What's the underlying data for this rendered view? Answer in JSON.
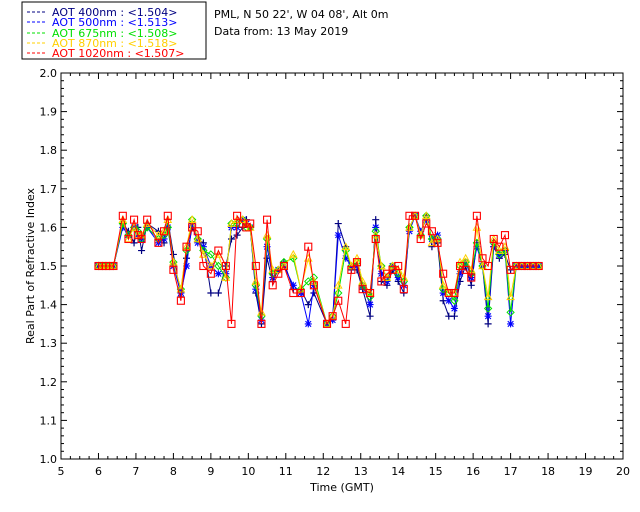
{
  "header": {
    "site": "PML, N 50 22', W 04 08', Alt 0m",
    "date": "Data from: 13 May 2019"
  },
  "legend": [
    {
      "label": "AOT  400nm : <1.504>",
      "color": "#000080"
    },
    {
      "label": "AOT  500nm : <1.513>",
      "color": "#0000ff"
    },
    {
      "label": "AOT  675nm : <1.508>",
      "color": "#00e000"
    },
    {
      "label": "AOT  870nm : <1.518>",
      "color": "#ffd000"
    },
    {
      "label": "AOT 1020nm : <1.507>",
      "color": "#ff0000"
    }
  ],
  "chart_data": {
    "type": "line",
    "xlabel": "Time (GMT)",
    "ylabel": "Real Part of Refractive Index",
    "xlim": [
      5,
      20
    ],
    "ylim": [
      1.0,
      2.0
    ],
    "xticks": [
      5,
      6,
      7,
      8,
      9,
      10,
      11,
      12,
      13,
      14,
      15,
      16,
      17,
      18,
      19,
      20
    ],
    "yticks": [
      1.0,
      1.1,
      1.2,
      1.3,
      1.4,
      1.5,
      1.6,
      1.7,
      1.8,
      1.9,
      2.0
    ],
    "x": [
      6.0,
      6.1,
      6.2,
      6.3,
      6.4,
      6.65,
      6.8,
      6.95,
      7.05,
      7.15,
      7.3,
      7.6,
      7.75,
      7.85,
      8.0,
      8.2,
      8.35,
      8.5,
      8.65,
      8.8,
      9.0,
      9.2,
      9.4,
      9.55,
      9.7,
      9.85,
      9.95,
      10.05,
      10.2,
      10.35,
      10.5,
      10.65,
      10.8,
      10.95,
      11.2,
      11.4,
      11.6,
      11.75,
      12.1,
      12.25,
      12.4,
      12.6,
      12.75,
      12.9,
      13.05,
      13.25,
      13.4,
      13.55,
      13.7,
      13.85,
      14.0,
      14.15,
      14.3,
      14.45,
      14.6,
      14.75,
      14.9,
      15.05,
      15.2,
      15.35,
      15.5,
      15.65,
      15.8,
      15.95,
      16.1,
      16.25,
      16.4,
      16.55,
      16.7,
      16.85,
      17.0,
      17.15,
      17.3,
      17.45,
      17.6,
      17.75
    ],
    "series": [
      {
        "name": "AOT 400nm",
        "color": "#000080",
        "marker": "plus",
        "values": [
          1.5,
          1.5,
          1.5,
          1.5,
          1.5,
          1.61,
          1.59,
          1.56,
          1.6,
          1.54,
          1.61,
          1.59,
          1.56,
          1.62,
          1.53,
          1.42,
          1.52,
          1.6,
          1.57,
          1.56,
          1.43,
          1.43,
          1.5,
          1.57,
          1.58,
          1.6,
          1.62,
          1.6,
          1.43,
          1.35,
          1.52,
          1.46,
          1.49,
          1.51,
          1.44,
          1.44,
          1.4,
          1.43,
          1.35,
          1.36,
          1.61,
          1.55,
          1.49,
          1.49,
          1.44,
          1.37,
          1.62,
          1.46,
          1.45,
          1.49,
          1.46,
          1.43,
          1.6,
          1.63,
          1.58,
          1.63,
          1.55,
          1.56,
          1.41,
          1.37,
          1.37,
          1.46,
          1.5,
          1.45,
          1.56,
          1.5,
          1.35,
          1.55,
          1.52,
          1.53,
          1.49,
          1.5,
          1.5,
          1.5,
          1.5,
          1.5
        ]
      },
      {
        "name": "AOT 500nm",
        "color": "#0000ff",
        "marker": "star",
        "values": [
          1.5,
          1.5,
          1.5,
          1.5,
          1.5,
          1.6,
          1.58,
          1.6,
          1.58,
          1.57,
          1.6,
          1.56,
          1.57,
          1.6,
          1.5,
          1.43,
          1.5,
          1.61,
          1.56,
          1.55,
          1.5,
          1.48,
          1.48,
          1.6,
          1.6,
          1.62,
          1.61,
          1.6,
          1.44,
          1.36,
          1.55,
          1.47,
          1.49,
          1.5,
          1.45,
          1.43,
          1.35,
          1.45,
          1.35,
          1.36,
          1.58,
          1.52,
          1.5,
          1.5,
          1.45,
          1.4,
          1.6,
          1.48,
          1.46,
          1.5,
          1.47,
          1.45,
          1.59,
          1.63,
          1.59,
          1.62,
          1.57,
          1.58,
          1.43,
          1.41,
          1.39,
          1.48,
          1.51,
          1.47,
          1.55,
          1.5,
          1.37,
          1.55,
          1.53,
          1.54,
          1.35,
          1.5,
          1.5,
          1.5,
          1.5,
          1.5
        ]
      },
      {
        "name": "AOT 675nm",
        "color": "#00e000",
        "marker": "diamond",
        "values": [
          1.5,
          1.5,
          1.5,
          1.5,
          1.5,
          1.61,
          1.58,
          1.6,
          1.59,
          1.57,
          1.6,
          1.57,
          1.58,
          1.6,
          1.51,
          1.44,
          1.54,
          1.62,
          1.57,
          1.54,
          1.53,
          1.5,
          1.47,
          1.61,
          1.61,
          1.62,
          1.6,
          1.6,
          1.45,
          1.37,
          1.57,
          1.48,
          1.49,
          1.51,
          1.52,
          1.44,
          1.46,
          1.47,
          1.35,
          1.37,
          1.43,
          1.54,
          1.5,
          1.51,
          1.45,
          1.42,
          1.59,
          1.5,
          1.47,
          1.5,
          1.48,
          1.46,
          1.6,
          1.63,
          1.58,
          1.63,
          1.57,
          1.57,
          1.44,
          1.43,
          1.41,
          1.5,
          1.51,
          1.48,
          1.56,
          1.5,
          1.39,
          1.56,
          1.53,
          1.54,
          1.38,
          1.5,
          1.5,
          1.5,
          1.5,
          1.5
        ]
      },
      {
        "name": "AOT 870nm",
        "color": "#ffd000",
        "marker": "triangle",
        "values": [
          1.5,
          1.5,
          1.5,
          1.5,
          1.5,
          1.62,
          1.57,
          1.6,
          1.58,
          1.58,
          1.61,
          1.58,
          1.59,
          1.62,
          1.51,
          1.44,
          1.55,
          1.62,
          1.57,
          1.53,
          1.5,
          1.53,
          1.47,
          1.61,
          1.62,
          1.62,
          1.61,
          1.6,
          1.46,
          1.38,
          1.58,
          1.49,
          1.49,
          1.5,
          1.53,
          1.44,
          1.52,
          1.46,
          1.35,
          1.37,
          1.45,
          1.55,
          1.5,
          1.52,
          1.46,
          1.43,
          1.58,
          1.5,
          1.47,
          1.5,
          1.49,
          1.47,
          1.6,
          1.63,
          1.58,
          1.63,
          1.56,
          1.57,
          1.45,
          1.43,
          1.43,
          1.51,
          1.52,
          1.49,
          1.6,
          1.5,
          1.42,
          1.57,
          1.54,
          1.55,
          1.42,
          1.5,
          1.5,
          1.5,
          1.5,
          1.5
        ]
      },
      {
        "name": "AOT 1020nm",
        "color": "#ff0000",
        "marker": "square",
        "values": [
          1.5,
          1.5,
          1.5,
          1.5,
          1.5,
          1.63,
          1.57,
          1.62,
          1.58,
          1.57,
          1.62,
          1.56,
          1.59,
          1.63,
          1.49,
          1.41,
          1.55,
          1.6,
          1.59,
          1.5,
          1.48,
          1.54,
          1.5,
          1.35,
          1.63,
          1.61,
          1.6,
          1.61,
          1.5,
          1.35,
          1.62,
          1.45,
          1.48,
          1.5,
          1.43,
          1.43,
          1.55,
          1.45,
          1.35,
          1.37,
          1.41,
          1.35,
          1.49,
          1.51,
          1.44,
          1.43,
          1.57,
          1.46,
          1.48,
          1.49,
          1.5,
          1.44,
          1.63,
          1.63,
          1.57,
          1.61,
          1.59,
          1.56,
          1.48,
          1.43,
          1.43,
          1.5,
          1.49,
          1.47,
          1.63,
          1.52,
          1.5,
          1.57,
          1.55,
          1.58,
          1.49,
          1.5,
          1.5,
          1.5,
          1.5,
          1.5
        ]
      }
    ]
  }
}
